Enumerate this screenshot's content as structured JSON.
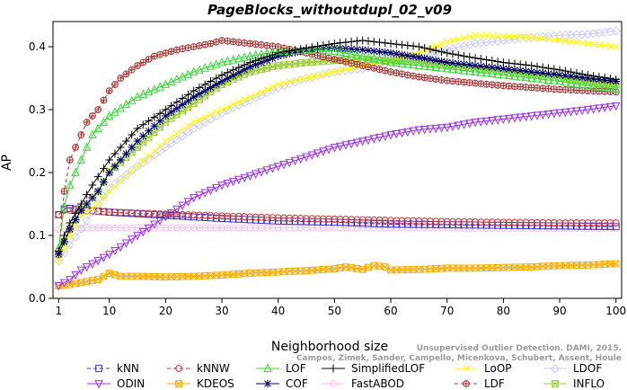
{
  "chart_data": {
    "type": "line",
    "title": "PageBlocks_withoutdupl_02_v09",
    "xlabel": "Neighborhood size",
    "ylabel": "AP",
    "xlim": [
      0,
      101
    ],
    "ylim": [
      0.0,
      0.44
    ],
    "x_ticks": [
      1,
      10,
      20,
      30,
      40,
      50,
      60,
      70,
      80,
      90,
      100
    ],
    "y_ticks": [
      0.0,
      0.1,
      0.2,
      0.3,
      0.4
    ],
    "legend_position": "bottom",
    "watermark": [
      "Unsupervised Outlier Detection. DAMI, 2015.",
      "Campos, Zimek, Sander, Campello, Micenkova, Schubert, Assent, Houle"
    ],
    "series": [
      {
        "name": "kNN",
        "color": "#3333cc",
        "marker": "square",
        "dash": "4,3",
        "points": [
          [
            1,
            0.133
          ],
          [
            2,
            0.142
          ],
          [
            3,
            0.143
          ],
          [
            5,
            0.141
          ],
          [
            10,
            0.137
          ],
          [
            20,
            0.132
          ],
          [
            30,
            0.127
          ],
          [
            40,
            0.123
          ],
          [
            50,
            0.121
          ],
          [
            60,
            0.118
          ],
          [
            70,
            0.117
          ],
          [
            80,
            0.116
          ],
          [
            90,
            0.115
          ],
          [
            100,
            0.114
          ]
        ]
      },
      {
        "name": "kNNW",
        "color": "#cc3333",
        "marker": "circle",
        "dash": "4,3",
        "points": [
          [
            1,
            0.133
          ],
          [
            2,
            0.14
          ],
          [
            5,
            0.14
          ],
          [
            10,
            0.137
          ],
          [
            20,
            0.134
          ],
          [
            30,
            0.131
          ],
          [
            40,
            0.128
          ],
          [
            50,
            0.126
          ],
          [
            60,
            0.124
          ],
          [
            70,
            0.122
          ],
          [
            80,
            0.121
          ],
          [
            90,
            0.12
          ],
          [
            100,
            0.12
          ]
        ]
      },
      {
        "name": "LOF",
        "color": "#33dd33",
        "marker": "triangle-up",
        "dash": "",
        "points": [
          [
            1,
            0.08
          ],
          [
            2,
            0.145
          ],
          [
            3,
            0.18
          ],
          [
            5,
            0.22
          ],
          [
            7,
            0.26
          ],
          [
            10,
            0.29
          ],
          [
            15,
            0.32
          ],
          [
            20,
            0.34
          ],
          [
            25,
            0.36
          ],
          [
            30,
            0.375
          ],
          [
            35,
            0.385
          ],
          [
            40,
            0.392
          ],
          [
            45,
            0.395
          ],
          [
            50,
            0.393
          ],
          [
            55,
            0.385
          ],
          [
            60,
            0.375
          ],
          [
            65,
            0.37
          ],
          [
            70,
            0.365
          ],
          [
            75,
            0.36
          ],
          [
            80,
            0.355
          ],
          [
            85,
            0.35
          ],
          [
            90,
            0.345
          ],
          [
            95,
            0.338
          ],
          [
            100,
            0.333
          ]
        ]
      },
      {
        "name": "SimplifiedLOF",
        "color": "#000000",
        "marker": "plus",
        "dash": "",
        "points": [
          [
            1,
            0.075
          ],
          [
            2,
            0.1
          ],
          [
            3,
            0.12
          ],
          [
            5,
            0.15
          ],
          [
            7,
            0.18
          ],
          [
            10,
            0.22
          ],
          [
            15,
            0.27
          ],
          [
            20,
            0.3
          ],
          [
            25,
            0.33
          ],
          [
            30,
            0.355
          ],
          [
            35,
            0.375
          ],
          [
            40,
            0.39
          ],
          [
            45,
            0.398
          ],
          [
            50,
            0.405
          ],
          [
            55,
            0.41
          ],
          [
            60,
            0.405
          ],
          [
            65,
            0.4
          ],
          [
            70,
            0.39
          ],
          [
            75,
            0.382
          ],
          [
            80,
            0.375
          ],
          [
            85,
            0.37
          ],
          [
            90,
            0.363
          ],
          [
            95,
            0.355
          ],
          [
            100,
            0.348
          ]
        ]
      },
      {
        "name": "LoOP",
        "color": "#ffff00",
        "marker": "cross",
        "dash": "",
        "points": [
          [
            1,
            0.06
          ],
          [
            2,
            0.08
          ],
          [
            3,
            0.1
          ],
          [
            5,
            0.13
          ],
          [
            8,
            0.15
          ],
          [
            10,
            0.17
          ],
          [
            15,
            0.21
          ],
          [
            20,
            0.25
          ],
          [
            25,
            0.28
          ],
          [
            30,
            0.3
          ],
          [
            35,
            0.32
          ],
          [
            40,
            0.34
          ],
          [
            45,
            0.35
          ],
          [
            50,
            0.36
          ],
          [
            55,
            0.37
          ],
          [
            60,
            0.378
          ],
          [
            65,
            0.39
          ],
          [
            70,
            0.408
          ],
          [
            75,
            0.418
          ],
          [
            80,
            0.417
          ],
          [
            85,
            0.415
          ],
          [
            90,
            0.41
          ],
          [
            95,
            0.405
          ],
          [
            100,
            0.4
          ]
        ]
      },
      {
        "name": "LDOF",
        "color": "#ccccff",
        "marker": "diamond",
        "dash": "",
        "points": [
          [
            1,
            0.06
          ],
          [
            3,
            0.085
          ],
          [
            5,
            0.11
          ],
          [
            8,
            0.15
          ],
          [
            10,
            0.175
          ],
          [
            15,
            0.21
          ],
          [
            20,
            0.24
          ],
          [
            25,
            0.27
          ],
          [
            30,
            0.295
          ],
          [
            35,
            0.315
          ],
          [
            40,
            0.335
          ],
          [
            45,
            0.35
          ],
          [
            50,
            0.36
          ],
          [
            55,
            0.365
          ],
          [
            60,
            0.375
          ],
          [
            65,
            0.385
          ],
          [
            70,
            0.395
          ],
          [
            75,
            0.405
          ],
          [
            80,
            0.41
          ],
          [
            85,
            0.415
          ],
          [
            90,
            0.418
          ],
          [
            95,
            0.42
          ],
          [
            100,
            0.425
          ]
        ]
      },
      {
        "name": "ODIN",
        "color": "#9933ee",
        "marker": "triangle-down",
        "dash": "",
        "points": [
          [
            1,
            0.02
          ],
          [
            3,
            0.03
          ],
          [
            5,
            0.045
          ],
          [
            10,
            0.07
          ],
          [
            15,
            0.1
          ],
          [
            20,
            0.13
          ],
          [
            25,
            0.16
          ],
          [
            30,
            0.18
          ],
          [
            35,
            0.195
          ],
          [
            40,
            0.21
          ],
          [
            45,
            0.225
          ],
          [
            50,
            0.24
          ],
          [
            55,
            0.25
          ],
          [
            60,
            0.26
          ],
          [
            65,
            0.268
          ],
          [
            70,
            0.272
          ],
          [
            75,
            0.28
          ],
          [
            80,
            0.285
          ],
          [
            85,
            0.29
          ],
          [
            90,
            0.295
          ],
          [
            95,
            0.3
          ],
          [
            100,
            0.306
          ]
        ]
      },
      {
        "name": "KDEOS",
        "color": "#ffaa00",
        "marker": "box-x",
        "dash": "",
        "points": [
          [
            1,
            0.02
          ],
          [
            3,
            0.022
          ],
          [
            5,
            0.025
          ],
          [
            8,
            0.03
          ],
          [
            10,
            0.04
          ],
          [
            12,
            0.035
          ],
          [
            15,
            0.035
          ],
          [
            20,
            0.034
          ],
          [
            25,
            0.035
          ],
          [
            30,
            0.037
          ],
          [
            35,
            0.04
          ],
          [
            40,
            0.042
          ],
          [
            45,
            0.044
          ],
          [
            50,
            0.047
          ],
          [
            52,
            0.05
          ],
          [
            55,
            0.046
          ],
          [
            57,
            0.052
          ],
          [
            59,
            0.05
          ],
          [
            60,
            0.045
          ],
          [
            65,
            0.046
          ],
          [
            70,
            0.048
          ],
          [
            75,
            0.048
          ],
          [
            80,
            0.049
          ],
          [
            85,
            0.05
          ],
          [
            90,
            0.052
          ],
          [
            95,
            0.053
          ],
          [
            100,
            0.055
          ]
        ]
      },
      {
        "name": "COF",
        "color": "#000066",
        "marker": "asterisk",
        "dash": "",
        "points": [
          [
            1,
            0.07
          ],
          [
            2,
            0.09
          ],
          [
            3,
            0.11
          ],
          [
            5,
            0.14
          ],
          [
            8,
            0.17
          ],
          [
            10,
            0.2
          ],
          [
            15,
            0.25
          ],
          [
            20,
            0.29
          ],
          [
            25,
            0.32
          ],
          [
            30,
            0.345
          ],
          [
            35,
            0.368
          ],
          [
            40,
            0.385
          ],
          [
            45,
            0.395
          ],
          [
            50,
            0.398
          ],
          [
            55,
            0.395
          ],
          [
            60,
            0.39
          ],
          [
            65,
            0.383
          ],
          [
            70,
            0.375
          ],
          [
            75,
            0.37
          ],
          [
            80,
            0.365
          ],
          [
            85,
            0.36
          ],
          [
            90,
            0.355
          ],
          [
            95,
            0.35
          ],
          [
            100,
            0.345
          ]
        ]
      },
      {
        "name": "FastABOD",
        "color": "#ffbbee",
        "marker": "circle",
        "dash": "",
        "points": [
          [
            1,
            0.11
          ],
          [
            3,
            0.112
          ],
          [
            5,
            0.112
          ],
          [
            10,
            0.112
          ],
          [
            20,
            0.112
          ],
          [
            30,
            0.112
          ],
          [
            40,
            0.112
          ],
          [
            50,
            0.112
          ],
          [
            60,
            0.112
          ],
          [
            70,
            0.112
          ],
          [
            80,
            0.111
          ],
          [
            90,
            0.111
          ],
          [
            100,
            0.111
          ]
        ]
      },
      {
        "name": "LDF",
        "color": "#aa3333",
        "marker": "circle-plus",
        "dash": "4,3",
        "points": [
          [
            1,
            0.075
          ],
          [
            2,
            0.17
          ],
          [
            3,
            0.22
          ],
          [
            4,
            0.24
          ],
          [
            5,
            0.26
          ],
          [
            6,
            0.28
          ],
          [
            8,
            0.3
          ],
          [
            10,
            0.33
          ],
          [
            12,
            0.35
          ],
          [
            15,
            0.37
          ],
          [
            18,
            0.385
          ],
          [
            20,
            0.39
          ],
          [
            22,
            0.395
          ],
          [
            25,
            0.4
          ],
          [
            28,
            0.405
          ],
          [
            30,
            0.41
          ],
          [
            35,
            0.405
          ],
          [
            40,
            0.4
          ],
          [
            45,
            0.39
          ],
          [
            50,
            0.38
          ],
          [
            55,
            0.37
          ],
          [
            60,
            0.36
          ],
          [
            65,
            0.352
          ],
          [
            70,
            0.346
          ],
          [
            75,
            0.342
          ],
          [
            80,
            0.338
          ],
          [
            85,
            0.335
          ],
          [
            90,
            0.332
          ],
          [
            95,
            0.33
          ],
          [
            100,
            0.328
          ]
        ]
      },
      {
        "name": "INFLO",
        "color": "#99cc33",
        "marker": "hourglass",
        "dash": "",
        "points": [
          [
            1,
            0.07
          ],
          [
            2,
            0.09
          ],
          [
            3,
            0.11
          ],
          [
            5,
            0.14
          ],
          [
            8,
            0.17
          ],
          [
            10,
            0.2
          ],
          [
            15,
            0.24
          ],
          [
            20,
            0.28
          ],
          [
            25,
            0.31
          ],
          [
            30,
            0.34
          ],
          [
            35,
            0.36
          ],
          [
            40,
            0.37
          ],
          [
            45,
            0.375
          ],
          [
            50,
            0.378
          ],
          [
            55,
            0.38
          ],
          [
            60,
            0.378
          ],
          [
            65,
            0.375
          ],
          [
            70,
            0.37
          ],
          [
            75,
            0.365
          ],
          [
            80,
            0.36
          ],
          [
            85,
            0.355
          ],
          [
            90,
            0.35
          ],
          [
            95,
            0.345
          ],
          [
            100,
            0.34
          ]
        ]
      }
    ]
  }
}
